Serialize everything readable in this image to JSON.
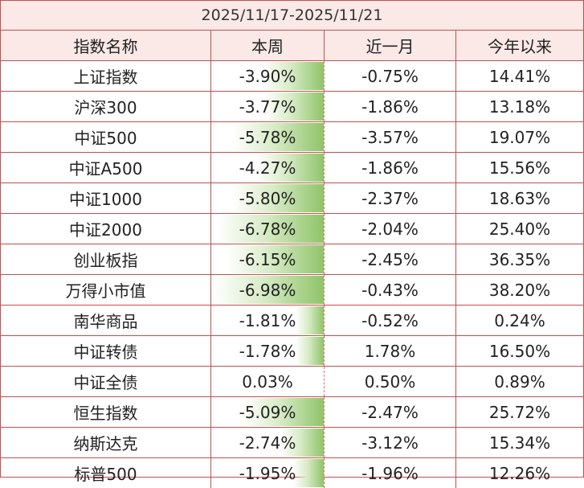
{
  "title": "2025/11/17-2025/11/21",
  "headers": [
    "指数名称",
    "本周",
    "近一月",
    "今年以来"
  ],
  "rows": [
    {
      "name": "上证指数",
      "week": "-3.90%",
      "month": "-0.75%",
      "ytd": "14.41%",
      "week_value": -3.9
    },
    {
      "name": "沪深300",
      "week": "-3.77%",
      "month": "-1.86%",
      "ytd": "13.18%",
      "week_value": -3.77
    },
    {
      "name": "中证500",
      "week": "-5.78%",
      "month": "-3.57%",
      "ytd": "19.07%",
      "week_value": -5.78
    },
    {
      "name": "中证A500",
      "week": "-4.27%",
      "month": "-1.86%",
      "ytd": "15.56%",
      "week_value": -4.27
    },
    {
      "name": "中证1000",
      "week": "-5.80%",
      "month": "-2.37%",
      "ytd": "18.63%",
      "week_value": -5.8
    },
    {
      "name": "中证2000",
      "week": "-6.78%",
      "month": "-2.04%",
      "ytd": "25.40%",
      "week_value": -6.78
    },
    {
      "name": "创业板指",
      "week": "-6.15%",
      "month": "-2.45%",
      "ytd": "36.35%",
      "week_value": -6.15
    },
    {
      "name": "万得小市值",
      "week": "-6.98%",
      "month": "-0.43%",
      "ytd": "38.20%",
      "week_value": -6.98
    },
    {
      "name": "南华商品",
      "week": "-1.81%",
      "month": "-0.52%",
      "ytd": "0.24%",
      "week_value": -1.81
    },
    {
      "name": "中证转债",
      "week": "-1.78%",
      "month": "1.78%",
      "ytd": "16.50%",
      "week_value": -1.78
    },
    {
      "name": "中证全债",
      "week": "0.03%",
      "month": "0.50%",
      "ytd": "0.89%",
      "week_value": 0.03
    },
    {
      "name": "恒生指数",
      "week": "-5.09%",
      "month": "-2.47%",
      "ytd": "25.72%",
      "week_value": -5.09
    },
    {
      "name": "纳斯达克",
      "week": "-2.74%",
      "month": "-3.12%",
      "ytd": "15.34%",
      "week_value": -2.74
    },
    {
      "name": "标普500",
      "week": "-1.95%",
      "month": "-1.96%",
      "ytd": "12.26%",
      "week_value": -1.95
    }
  ],
  "colors": {
    "border": "#c0504d",
    "header_bg": "#fbe9e7",
    "bar_green": "#8fc46a"
  }
}
